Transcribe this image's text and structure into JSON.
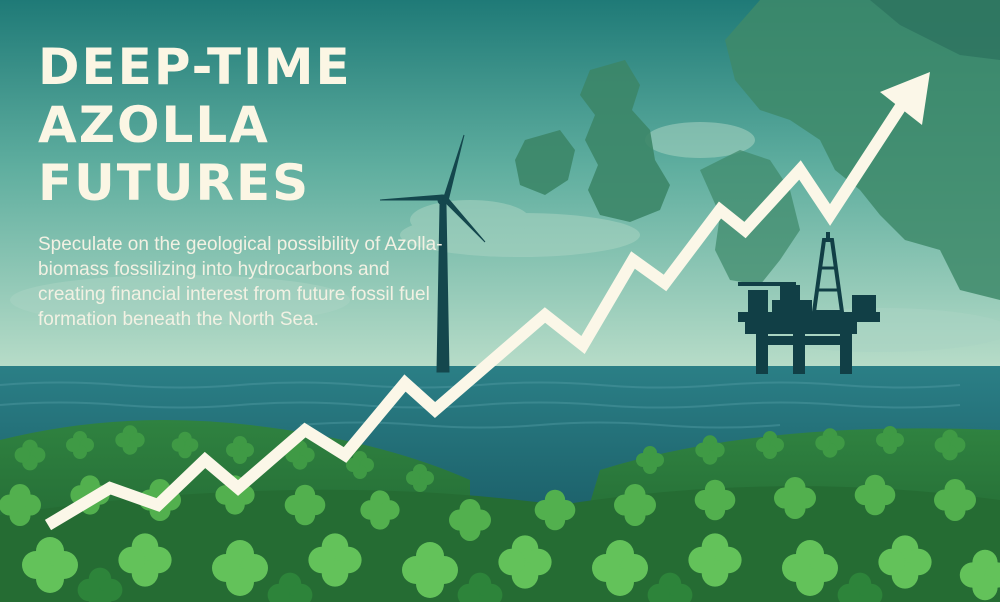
{
  "hero": {
    "title_lines": [
      "DEEP-TIME",
      "AZOLLA",
      "FUTURES"
    ],
    "subtitle": "Speculate on the geological possibility of Azolla-biomass fossilizing into hydrocarbons and creating financial interest from future fossil fuel formation beneath the North Sea."
  },
  "illustration": {
    "icons": [
      "wind-turbine-icon",
      "oil-platform-icon",
      "rising-arrow-icon",
      "azolla-fern-icon",
      "north-sea-map"
    ]
  },
  "colors": {
    "sky_top": "#1f7a77",
    "sky_mid": "#6fb7a6",
    "horizon": "#b9ddc9",
    "land": "#3e8a6a",
    "sea": "#1d6d74",
    "turbine": "#14474d",
    "platform": "#113f46",
    "arrow": "#fbf7e8",
    "fern_dark": "#2f8a3c",
    "fern_light": "#5cbf55",
    "title": "#fbf6e4"
  }
}
